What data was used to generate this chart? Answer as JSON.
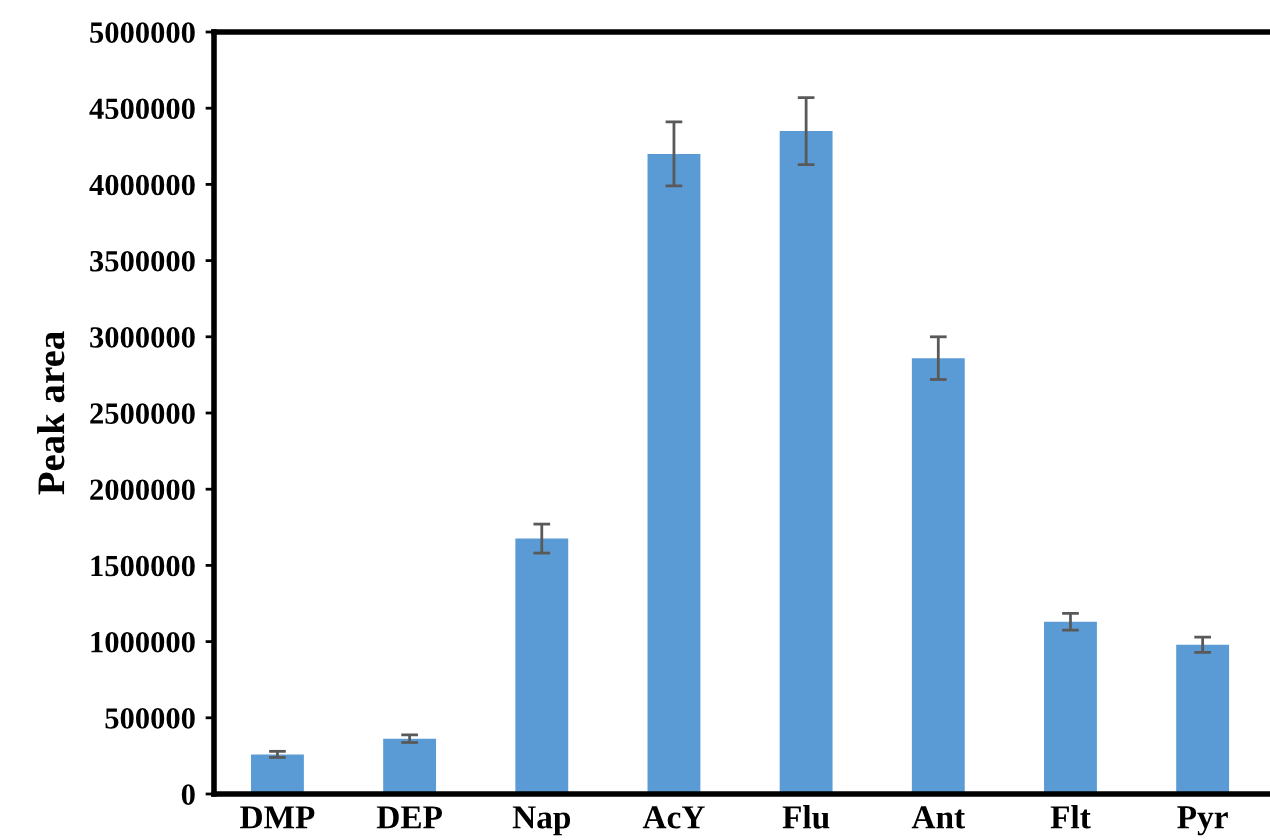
{
  "chart_data": {
    "type": "bar",
    "ylabel": "Peak area",
    "categories": [
      "DMP",
      "DEP",
      "Nap",
      "AcY",
      "Flu",
      "Ant",
      "Flt",
      "Pyr"
    ],
    "values": [
      260000,
      363000,
      1676000,
      4200000,
      4350000,
      2860000,
      1130000,
      980000
    ],
    "errors": [
      20000,
      25000,
      95000,
      210000,
      220000,
      140000,
      55000,
      50000
    ],
    "color": "#5b9bd5",
    "ylim": [
      0,
      5000000
    ],
    "yticks": [
      0,
      500000,
      1000000,
      1500000,
      2000000,
      2500000,
      3000000,
      3500000,
      4000000,
      4500000,
      5000000
    ],
    "grid": false
  }
}
